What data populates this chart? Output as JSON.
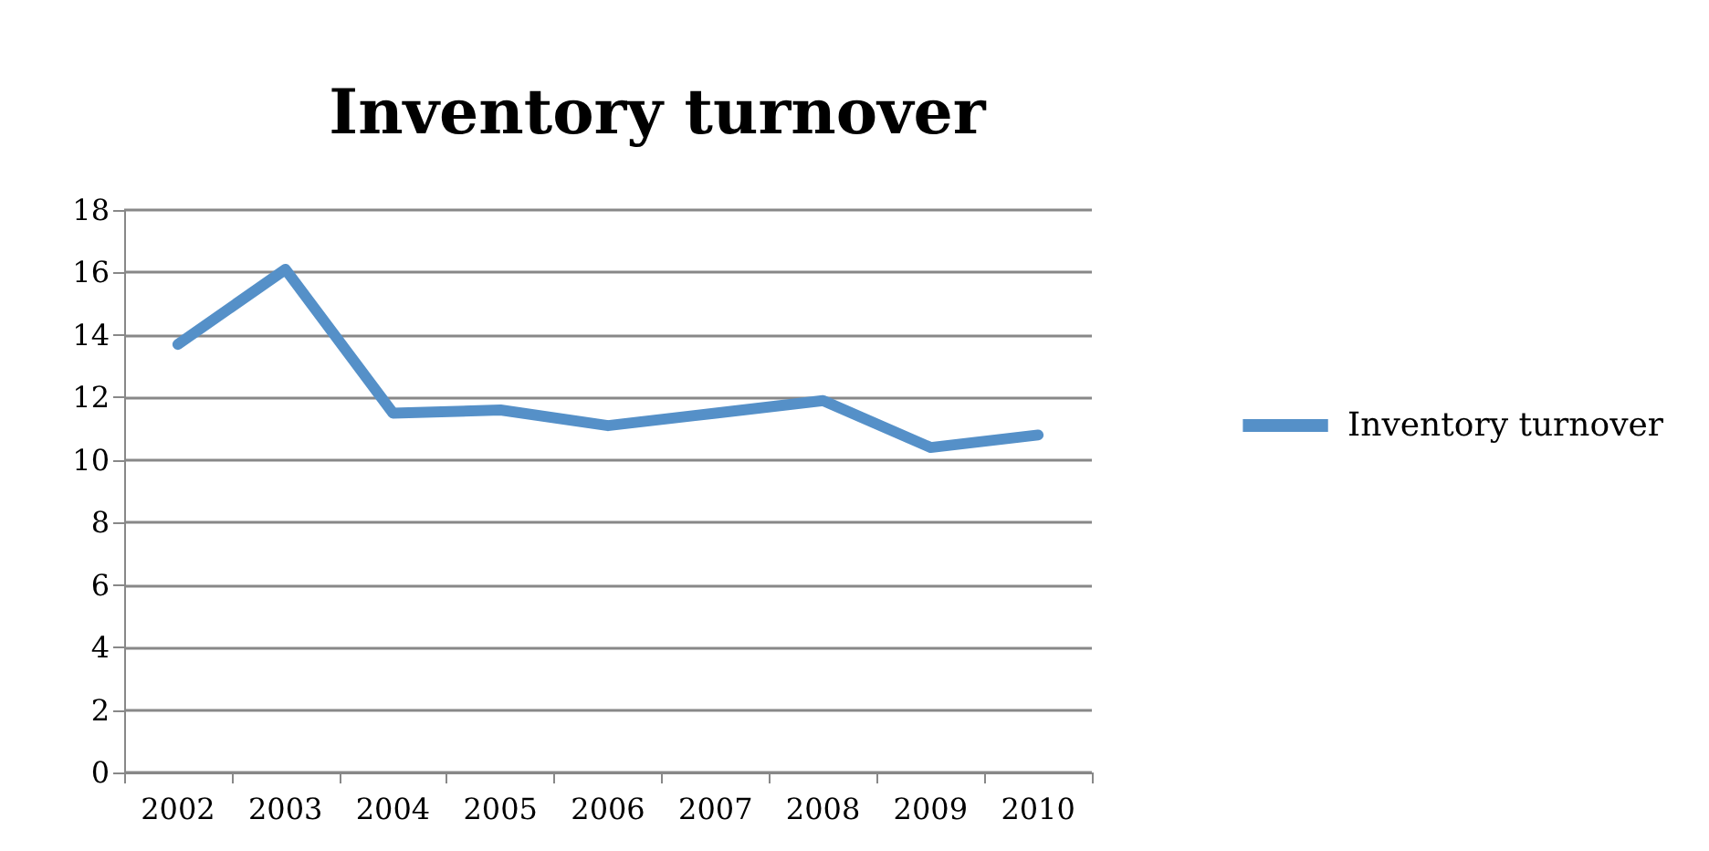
{
  "chart_data": {
    "type": "line",
    "title": "Inventory turnover",
    "categories": [
      "2002",
      "2003",
      "2004",
      "2005",
      "2006",
      "2007",
      "2008",
      "2009",
      "2010"
    ],
    "series": [
      {
        "name": "Inventory turnover",
        "color": "#5590c8",
        "values": [
          13.7,
          16.1,
          11.5,
          11.6,
          11.1,
          11.5,
          11.9,
          10.4,
          10.8
        ]
      }
    ],
    "ylim": [
      0,
      18
    ],
    "yticks": [
      0,
      2,
      4,
      6,
      8,
      10,
      12,
      14,
      16,
      18
    ],
    "grid": "y",
    "legend": "right",
    "marker": "none",
    "line_style": "solid"
  }
}
